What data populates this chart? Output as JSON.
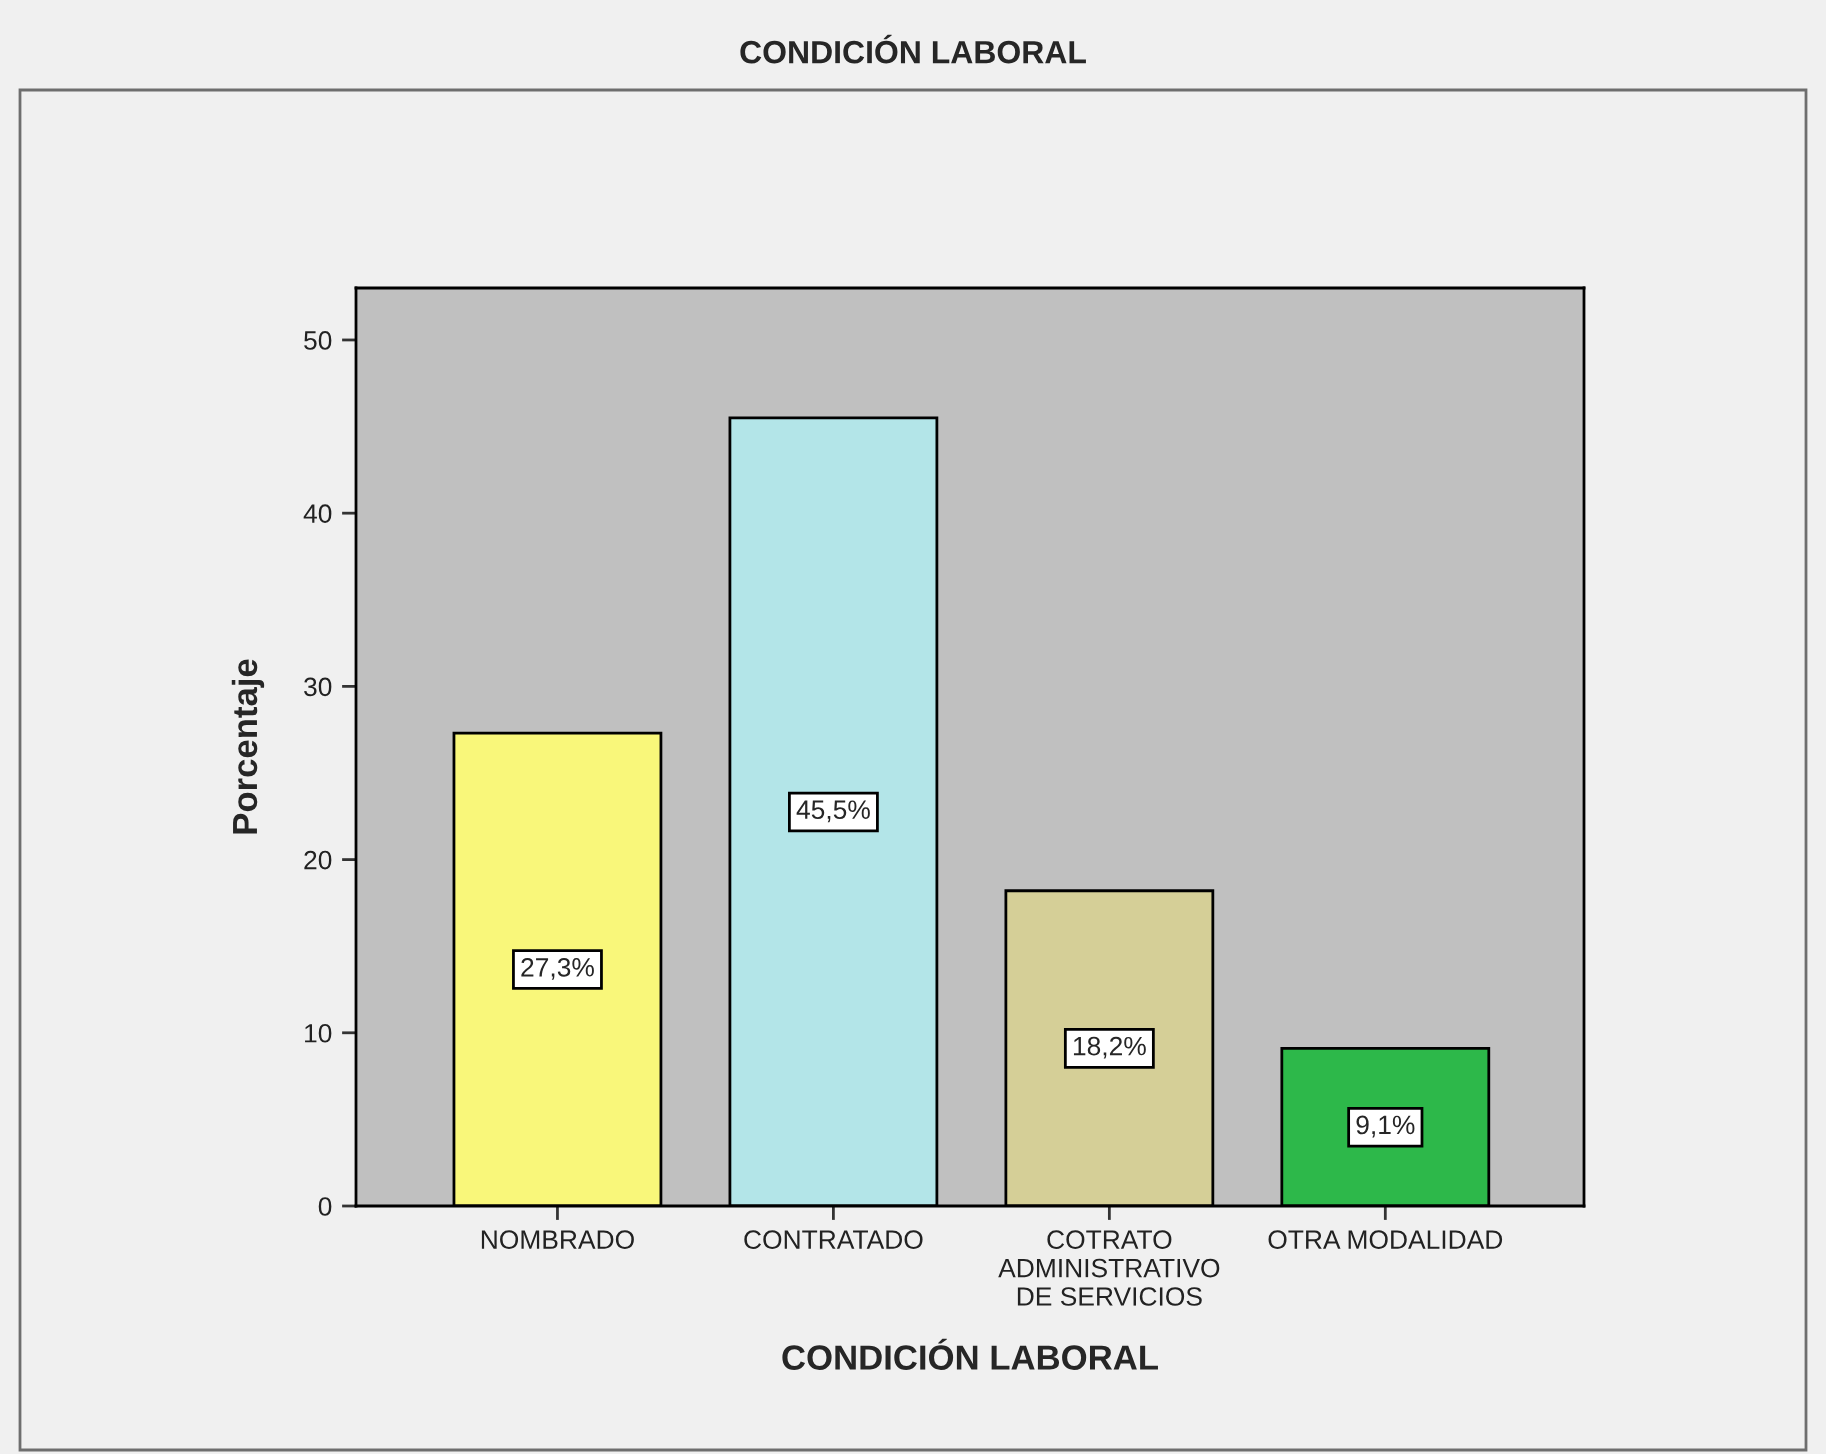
{
  "chart_data": {
    "type": "bar",
    "title": "CONDICIÓN LABORAL",
    "xlabel": "CONDICIÓN LABORAL",
    "ylabel": "Porcentaje",
    "categories": [
      "NOMBRADO",
      "CONTRATADO",
      "COTRATO\nADMINISTRATIVO\nDE SERVICIOS",
      "OTRA MODALIDAD"
    ],
    "values": [
      27.3,
      45.5,
      18.2,
      9.1
    ],
    "colors": [
      "#f9f77a",
      "#b3e5e8",
      "#d5cf97",
      "#2db84a"
    ],
    "value_labels": [
      "27,3%",
      "45,5%",
      "18,2%",
      "9,1%"
    ],
    "ylim": [
      0,
      53
    ],
    "yticks": [
      0,
      10,
      20,
      30,
      40,
      50
    ],
    "grid": false
  }
}
